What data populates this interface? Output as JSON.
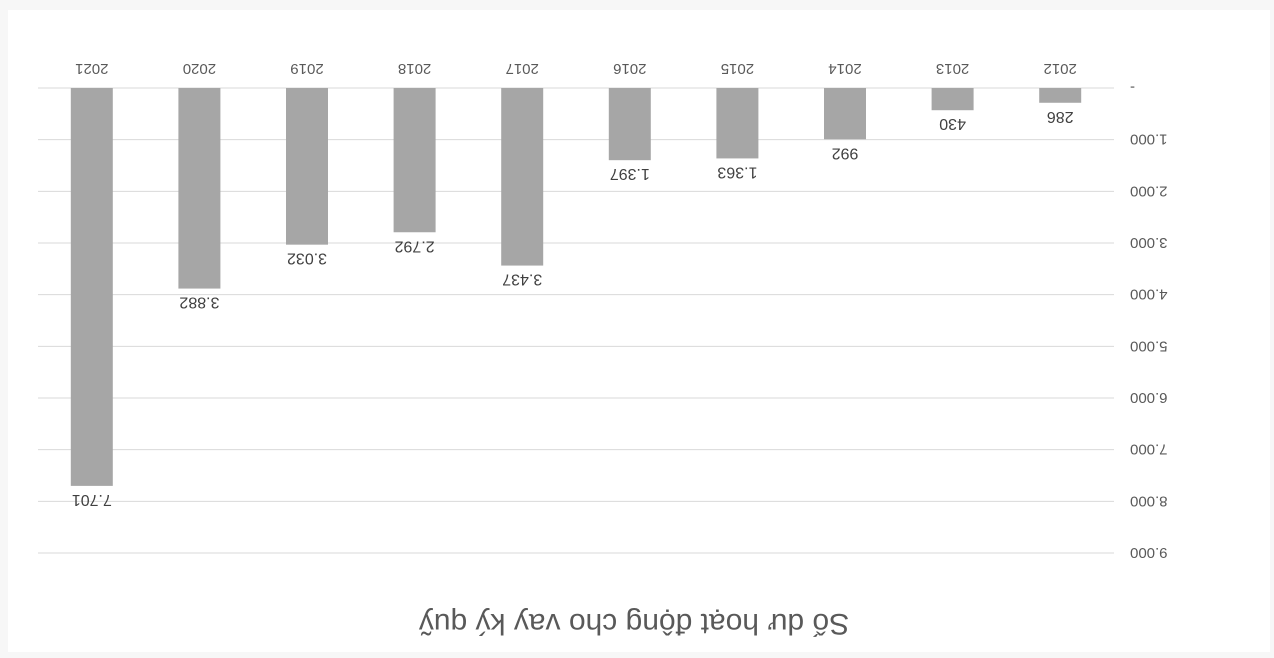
{
  "chart_data": {
    "type": "bar",
    "title": "Số dư hoạt động cho vay ký quỹ",
    "categories": [
      "2012",
      "2013",
      "2014",
      "2015",
      "2016",
      "2017",
      "2018",
      "2019",
      "2020",
      "2021"
    ],
    "values": [
      286,
      430,
      992,
      1363,
      1397,
      3437,
      2792,
      3032,
      3882,
      7701
    ],
    "value_labels": [
      "286",
      "430",
      "992",
      "1.363",
      "1.397",
      "3.437",
      "2.792",
      "3.032",
      "3.882",
      "7.701"
    ],
    "yticks": [
      "-",
      "1.000",
      "2.000",
      "3.000",
      "4.000",
      "5.000",
      "6.000",
      "7.000",
      "8.000",
      "9.000"
    ],
    "ylim": [
      0,
      9000
    ],
    "grid": true,
    "bar_color": "#a6a6a6",
    "grid_color": "#d9d9d9",
    "orientation": "rotated 180 degrees"
  }
}
